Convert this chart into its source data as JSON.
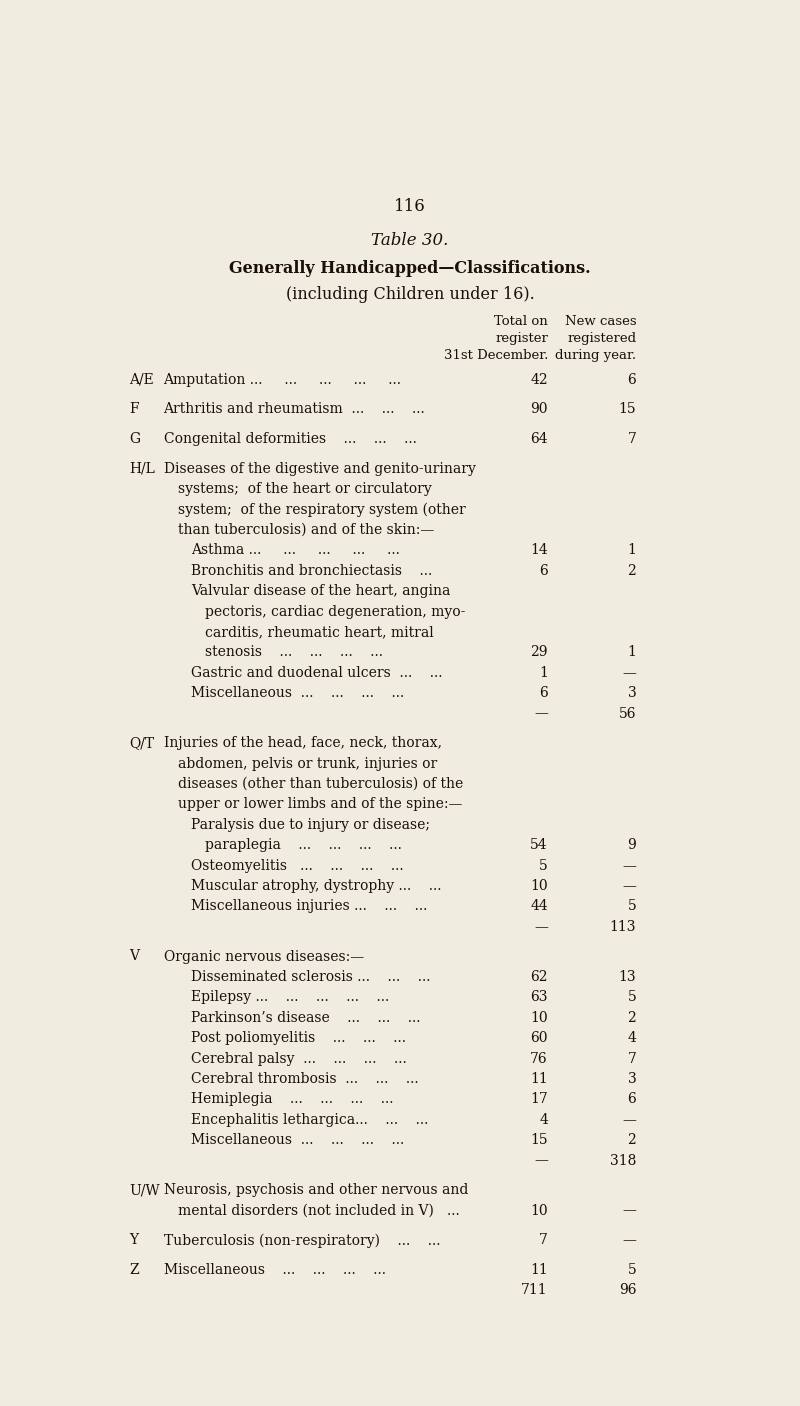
{
  "page_number": "116",
  "table_number": "Table 30.",
  "title_line1": "Generally Handicapped—Classifications.",
  "title_line2": "(including Children under 16).",
  "col_header1_line1": "Total on",
  "col_header1_line2": "register",
  "col_header1_line3": "31st December.",
  "col_header2_line1": "New cases",
  "col_header2_line2": "registered",
  "col_header2_line3": "during year.",
  "background_color": "#f0ece0",
  "text_color": "#1a1008",
  "rows": [
    {
      "code": "A/E",
      "indent": 0,
      "text": "Amputation ...     ...     ...     ...     ...",
      "val1": "42",
      "val2": "6",
      "spacer_after": true
    },
    {
      "code": "F",
      "indent": 0,
      "text": "Arthritis and rheumatism  ...    ...    ...",
      "val1": "90",
      "val2": "15",
      "spacer_after": true
    },
    {
      "code": "G",
      "indent": 0,
      "text": "Congenital deformities    ...    ...    ...",
      "val1": "64",
      "val2": "7",
      "spacer_after": true
    },
    {
      "code": "H/L",
      "indent": 0,
      "text": "Diseases of the digestive and genito-urinary",
      "val1": "",
      "val2": "",
      "spacer_after": false
    },
    {
      "code": "",
      "indent": 1,
      "text": "systems;  of the heart or circulatory",
      "val1": "",
      "val2": "",
      "spacer_after": false
    },
    {
      "code": "",
      "indent": 1,
      "text": "system;  of the respiratory system (other",
      "val1": "",
      "val2": "",
      "spacer_after": false
    },
    {
      "code": "",
      "indent": 1,
      "text": "than tuberculosis) and of the skin:—",
      "val1": "",
      "val2": "",
      "spacer_after": false
    },
    {
      "code": "",
      "indent": 2,
      "text": "Asthma ...     ...     ...     ...     ...",
      "val1": "14",
      "val2": "1",
      "spacer_after": false
    },
    {
      "code": "",
      "indent": 2,
      "text": "Bronchitis and bronchiectasis    ...",
      "val1": "6",
      "val2": "2",
      "spacer_after": false
    },
    {
      "code": "",
      "indent": 2,
      "text": "Valvular disease of the heart, angina",
      "val1": "",
      "val2": "",
      "spacer_after": false
    },
    {
      "code": "",
      "indent": 3,
      "text": "pectoris, cardiac degeneration, myo-",
      "val1": "",
      "val2": "",
      "spacer_after": false
    },
    {
      "code": "",
      "indent": 3,
      "text": "carditis, rheumatic heart, mitral",
      "val1": "",
      "val2": "",
      "spacer_after": false
    },
    {
      "code": "",
      "indent": 3,
      "text": "stenosis    ...    ...    ...    ...",
      "val1": "29",
      "val2": "1",
      "spacer_after": false
    },
    {
      "code": "",
      "indent": 2,
      "text": "Gastric and duodenal ulcers  ...    ...",
      "val1": "1",
      "val2": "—",
      "spacer_after": false
    },
    {
      "code": "",
      "indent": 2,
      "text": "Miscellaneous  ...    ...    ...    ...",
      "val1": "6",
      "val2": "3",
      "spacer_after": false
    },
    {
      "code": "",
      "indent": 0,
      "text": "",
      "val1": "—",
      "val2": "56",
      "spacer_after": true,
      "subtotal": true
    },
    {
      "code": "Q/T",
      "indent": 0,
      "text": "Injuries of the head, face, neck, thorax,",
      "val1": "",
      "val2": "",
      "spacer_after": false
    },
    {
      "code": "",
      "indent": 1,
      "text": "abdomen, pelvis or trunk, injuries or",
      "val1": "",
      "val2": "",
      "spacer_after": false
    },
    {
      "code": "",
      "indent": 1,
      "text": "diseases (other than tuberculosis) of the",
      "val1": "",
      "val2": "",
      "spacer_after": false
    },
    {
      "code": "",
      "indent": 1,
      "text": "upper or lower limbs and of the spine:—",
      "val1": "",
      "val2": "",
      "spacer_after": false
    },
    {
      "code": "",
      "indent": 2,
      "text": "Paralysis due to injury or disease;",
      "val1": "",
      "val2": "",
      "spacer_after": false
    },
    {
      "code": "",
      "indent": 3,
      "text": "paraplegia    ...    ...    ...    ...",
      "val1": "54",
      "val2": "9",
      "spacer_after": false
    },
    {
      "code": "",
      "indent": 2,
      "text": "Osteomyelitis   ...    ...    ...    ...",
      "val1": "5",
      "val2": "—",
      "spacer_after": false
    },
    {
      "code": "",
      "indent": 2,
      "text": "Muscular atrophy, dystrophy ...    ...",
      "val1": "10",
      "val2": "—",
      "spacer_after": false
    },
    {
      "code": "",
      "indent": 2,
      "text": "Miscellaneous injuries ...    ...    ...",
      "val1": "44",
      "val2": "5",
      "spacer_after": false
    },
    {
      "code": "",
      "indent": 0,
      "text": "",
      "val1": "—",
      "val2": "113",
      "spacer_after": true,
      "subtotal": true
    },
    {
      "code": "V",
      "indent": 0,
      "text": "Organic nervous diseases:—",
      "val1": "",
      "val2": "",
      "spacer_after": false
    },
    {
      "code": "",
      "indent": 2,
      "text": "Disseminated sclerosis ...    ...    ...",
      "val1": "62",
      "val2": "13",
      "spacer_after": false
    },
    {
      "code": "",
      "indent": 2,
      "text": "Epilepsy ...    ...    ...    ...    ...",
      "val1": "63",
      "val2": "5",
      "spacer_after": false
    },
    {
      "code": "",
      "indent": 2,
      "text": "Parkinson’s disease    ...    ...    ...",
      "val1": "10",
      "val2": "2",
      "spacer_after": false
    },
    {
      "code": "",
      "indent": 2,
      "text": "Post poliomyelitis    ...    ...    ...",
      "val1": "60",
      "val2": "4",
      "spacer_after": false
    },
    {
      "code": "",
      "indent": 2,
      "text": "Cerebral palsy  ...    ...    ...    ...",
      "val1": "76",
      "val2": "7",
      "spacer_after": false
    },
    {
      "code": "",
      "indent": 2,
      "text": "Cerebral thrombosis  ...    ...    ...",
      "val1": "11",
      "val2": "3",
      "spacer_after": false
    },
    {
      "code": "",
      "indent": 2,
      "text": "Hemiplegia    ...    ...    ...    ...",
      "val1": "17",
      "val2": "6",
      "spacer_after": false
    },
    {
      "code": "",
      "indent": 2,
      "text": "Encephalitis lethargica...    ...    ...",
      "val1": "4",
      "val2": "—",
      "spacer_after": false
    },
    {
      "code": "",
      "indent": 2,
      "text": "Miscellaneous  ...    ...    ...    ...",
      "val1": "15",
      "val2": "2",
      "spacer_after": false
    },
    {
      "code": "",
      "indent": 0,
      "text": "",
      "val1": "—",
      "val2": "318",
      "spacer_after": true,
      "subtotal": true
    },
    {
      "code": "U/W",
      "indent": 0,
      "text": "Neurosis, psychosis and other nervous and",
      "val1": "",
      "val2": "",
      "spacer_after": false
    },
    {
      "code": "",
      "indent": 1,
      "text": "mental disorders (not included in V)   ...",
      "val1": "10",
      "val2": "—",
      "spacer_after": true
    },
    {
      "code": "Y",
      "indent": 0,
      "text": "Tuberculosis (non-respiratory)    ...    ...",
      "val1": "7",
      "val2": "—",
      "spacer_after": true
    },
    {
      "code": "Z",
      "indent": 0,
      "text": "Miscellaneous    ...    ...    ...    ...",
      "val1": "11",
      "val2": "5",
      "spacer_after": false
    },
    {
      "code": "",
      "indent": 0,
      "text": "",
      "val1": "711",
      "val2": "96",
      "spacer_after": false,
      "total": true
    }
  ]
}
